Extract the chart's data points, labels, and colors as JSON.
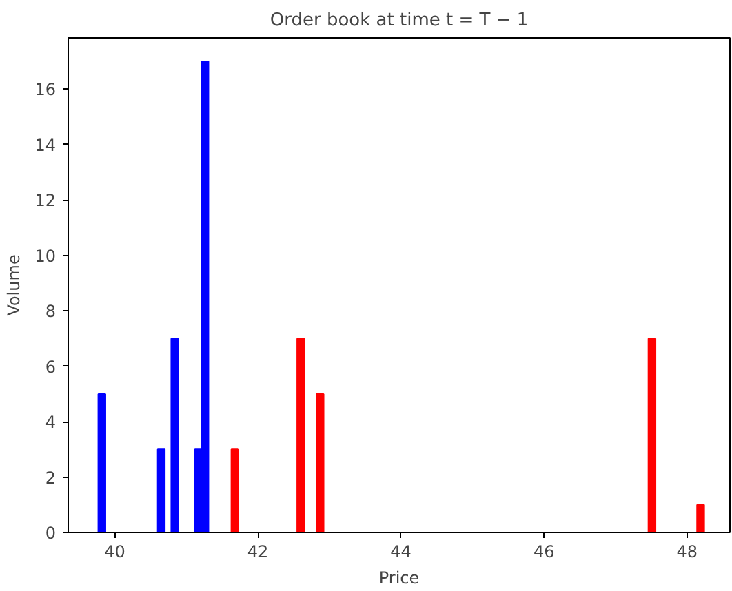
{
  "chart_data": {
    "type": "bar",
    "title": "Order book at time t = T − 1",
    "xlabel": "Price",
    "ylabel": "Volume",
    "xlim": [
      39.35,
      48.6
    ],
    "xticks": [
      40,
      42,
      44,
      46,
      48
    ],
    "ylim": [
      0,
      17.85
    ],
    "yticks": [
      0,
      2,
      4,
      6,
      8,
      10,
      12,
      14,
      16
    ],
    "grid": false,
    "series": [
      {
        "color": "#0000ff",
        "x": [
          39.82,
          40.65,
          40.84,
          41.17,
          41.26
        ],
        "values": [
          5,
          3,
          7,
          3,
          17
        ]
      },
      {
        "color": "#ff0000",
        "x": [
          41.68,
          42.6,
          42.87,
          47.51,
          48.19
        ],
        "values": [
          3,
          7,
          5,
          7,
          1
        ]
      }
    ]
  }
}
